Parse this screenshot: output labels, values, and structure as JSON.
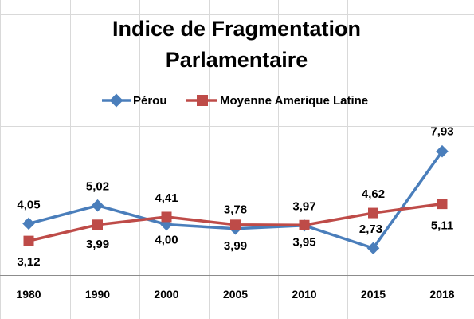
{
  "chart_data": {
    "type": "line",
    "title_line1": "Indice de Fragmentation",
    "title_line2": "Parlamentaire",
    "categories": [
      "1980",
      "1990",
      "2000",
      "2005",
      "2010",
      "2015",
      "2018"
    ],
    "series": [
      {
        "name": "Pérou",
        "color": "#4A7EBB",
        "marker": "diamond",
        "values": [
          4.05,
          5.02,
          4.0,
          3.78,
          3.95,
          2.73,
          7.93
        ],
        "labels": [
          "4,05",
          "5,02",
          "4,00",
          "3,78",
          "3,95",
          "2,73",
          "7,93"
        ]
      },
      {
        "name": "Moyenne Amerique Latine",
        "color": "#BE4B48",
        "marker": "square",
        "values": [
          3.12,
          3.99,
          4.41,
          3.99,
          3.97,
          4.62,
          5.11
        ],
        "labels": [
          "3,12",
          "3,99",
          "4,41",
          "3,99",
          "3,97",
          "4,62",
          "5,11"
        ]
      }
    ],
    "ylim": [
      1.5,
      9.2
    ],
    "legend_position": "top",
    "grid": true
  }
}
